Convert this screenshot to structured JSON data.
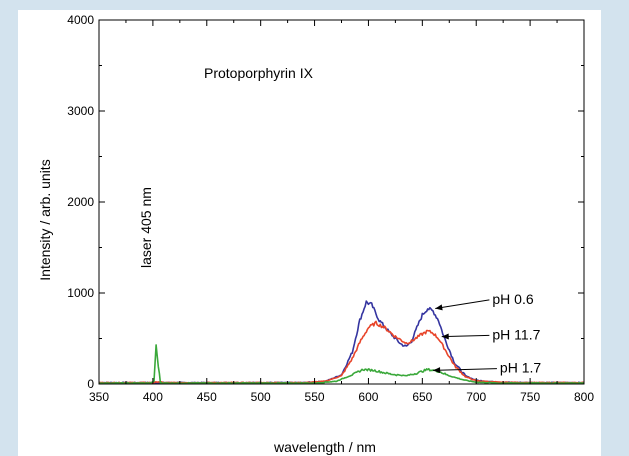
{
  "chart_data": {
    "type": "line",
    "title": "",
    "annotation_title": "Protoporphyrin IX",
    "annotation_laser": "laser 405 nm",
    "xlabel": "wavelength / nm",
    "ylabel": "Intensity / arb. units",
    "xlim": [
      350,
      800
    ],
    "ylim": [
      0,
      4000
    ],
    "xticks": [
      350,
      400,
      450,
      500,
      550,
      600,
      650,
      700,
      750,
      800
    ],
    "yticks": [
      0,
      1000,
      2000,
      3000,
      4000
    ],
    "grid": false,
    "legend": "none",
    "series": [
      {
        "name": "pH 0.6",
        "color": "#3535a0",
        "x": [
          350,
          400,
          405,
          410,
          540,
          560,
          575,
          585,
          592,
          598,
          603,
          610,
          620,
          630,
          635,
          640,
          645,
          650,
          655,
          660,
          665,
          670,
          680,
          690,
          700,
          720,
          750,
          800
        ],
        "y": [
          15,
          15,
          15,
          15,
          15,
          30,
          100,
          350,
          700,
          900,
          870,
          700,
          560,
          440,
          410,
          470,
          620,
          760,
          830,
          800,
          700,
          520,
          230,
          90,
          40,
          20,
          15,
          15
        ]
      },
      {
        "name": "pH 11.7",
        "color": "#e8452a",
        "x": [
          350,
          400,
          405,
          410,
          540,
          560,
          575,
          585,
          593,
          600,
          607,
          615,
          625,
          635,
          640,
          645,
          650,
          655,
          660,
          665,
          670,
          680,
          690,
          700,
          720,
          750,
          800
        ],
        "y": [
          15,
          15,
          25,
          15,
          15,
          30,
          90,
          280,
          480,
          620,
          670,
          620,
          520,
          450,
          470,
          510,
          550,
          580,
          560,
          500,
          400,
          200,
          80,
          35,
          20,
          15,
          15
        ]
      },
      {
        "name": "pH 1.7",
        "color": "#3aa83a",
        "x": [
          350,
          398,
          401,
          403,
          405,
          407,
          410,
          550,
          570,
          585,
          595,
          605,
          620,
          635,
          645,
          655,
          665,
          675,
          690,
          700,
          720,
          800
        ],
        "y": [
          10,
          10,
          30,
          420,
          200,
          15,
          10,
          10,
          30,
          100,
          160,
          150,
          110,
          90,
          120,
          160,
          140,
          90,
          40,
          20,
          10,
          10
        ]
      }
    ],
    "series_labels": [
      "pH 0.6",
      "pH 11.7",
      "pH 1.7"
    ]
  }
}
